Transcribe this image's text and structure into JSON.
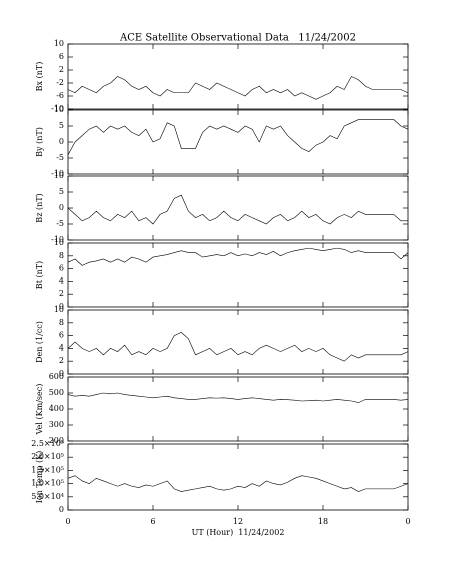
{
  "chart_data": [
    {
      "type": "line",
      "title": "ACE Satellite Observational Data   11/24/2002",
      "ylabel": "Bx (nT)",
      "color": "#000000",
      "ylim": [
        -10,
        10
      ],
      "yticks": [
        -10,
        -6,
        -2,
        2,
        6,
        10
      ],
      "x": [
        0,
        0.5,
        1,
        1.5,
        2,
        2.5,
        3,
        3.5,
        4,
        4.5,
        5,
        5.5,
        6,
        6.5,
        7,
        7.5,
        8,
        8.5,
        9,
        9.5,
        10,
        10.5,
        11,
        11.5,
        12,
        12.5,
        13,
        13.5,
        14,
        14.5,
        15,
        15.5,
        16,
        16.5,
        17,
        17.5,
        18,
        18.5,
        19,
        19.5,
        20,
        20.5,
        21,
        21.5,
        22,
        22.5,
        23,
        23.5,
        24
      ],
      "values": [
        -4,
        -5,
        -3,
        -4,
        -5,
        -3,
        -2,
        0,
        -1,
        -3,
        -4,
        -3,
        -5,
        -6,
        -4,
        -5,
        -5,
        -5,
        -2,
        -3,
        -4,
        -2,
        -3,
        -4,
        -5,
        -6,
        -4,
        -3,
        -5,
        -4,
        -5,
        -4,
        -6,
        -5,
        -6,
        -7,
        -6,
        -5,
        -3,
        -4,
        0,
        -1,
        -3,
        -4,
        -4,
        -4,
        -4,
        -4,
        -5
      ]
    },
    {
      "type": "line",
      "ylabel": "By (nT)",
      "color": "#000000",
      "ylim": [
        -10,
        10
      ],
      "yticks": [
        -10,
        -5,
        0,
        5,
        10
      ],
      "x": [
        0,
        0.5,
        1,
        1.5,
        2,
        2.5,
        3,
        3.5,
        4,
        4.5,
        5,
        5.5,
        6,
        6.5,
        7,
        7.5,
        8,
        8.5,
        9,
        9.5,
        10,
        10.5,
        11,
        11.5,
        12,
        12.5,
        13,
        13.5,
        14,
        14.5,
        15,
        15.5,
        16,
        16.5,
        17,
        17.5,
        18,
        18.5,
        19,
        19.5,
        20,
        20.5,
        21,
        21.5,
        22,
        22.5,
        23,
        23.5,
        24
      ],
      "values": [
        -4,
        0,
        2,
        4,
        5,
        3,
        5,
        4,
        5,
        3,
        2,
        4,
        0,
        1,
        6,
        5,
        -2,
        -2,
        -2,
        3,
        5,
        4,
        5,
        4,
        3,
        5,
        4,
        0,
        5,
        4,
        5,
        2,
        0,
        -2,
        -3,
        -1,
        0,
        2,
        1,
        5,
        6,
        7,
        7,
        7,
        7,
        7,
        7,
        5,
        4
      ]
    },
    {
      "type": "line",
      "ylabel": "Bz (nT)",
      "color": "#000000",
      "ylim": [
        -10,
        10
      ],
      "yticks": [
        -10,
        -5,
        0,
        5,
        10
      ],
      "x": [
        0,
        0.5,
        1,
        1.5,
        2,
        2.5,
        3,
        3.5,
        4,
        4.5,
        5,
        5.5,
        6,
        6.5,
        7,
        7.5,
        8,
        8.5,
        9,
        9.5,
        10,
        10.5,
        11,
        11.5,
        12,
        12.5,
        13,
        13.5,
        14,
        14.5,
        15,
        15.5,
        16,
        16.5,
        17,
        17.5,
        18,
        18.5,
        19,
        19.5,
        20,
        20.5,
        21,
        21.5,
        22,
        22.5,
        23,
        23.5,
        24
      ],
      "values": [
        0,
        -2,
        -4,
        -3,
        -1,
        -3,
        -4,
        -2,
        -3,
        -1,
        -4,
        -3,
        -5,
        -2,
        -1,
        3,
        4,
        -1,
        -3,
        -2,
        -4,
        -3,
        -1,
        -3,
        -4,
        -2,
        -3,
        -4,
        -5,
        -3,
        -2,
        -4,
        -3,
        -1,
        -3,
        -2,
        -4,
        -5,
        -3,
        -2,
        -3,
        -1,
        -2,
        -2,
        -2,
        -2,
        -2,
        -4,
        -4
      ]
    },
    {
      "type": "line",
      "ylabel": "Bt (nT)",
      "color": "#000000",
      "ylim": [
        0,
        10
      ],
      "yticks": [
        0,
        2,
        4,
        6,
        8,
        10
      ],
      "x": [
        0,
        0.5,
        1,
        1.5,
        2,
        2.5,
        3,
        3.5,
        4,
        4.5,
        5,
        5.5,
        6,
        6.5,
        7,
        7.5,
        8,
        8.5,
        9,
        9.5,
        10,
        10.5,
        11,
        11.5,
        12,
        12.5,
        13,
        13.5,
        14,
        14.5,
        15,
        15.5,
        16,
        16.5,
        17,
        17.5,
        18,
        18.5,
        19,
        19.5,
        20,
        20.5,
        21,
        21.5,
        22,
        22.5,
        23,
        23.5,
        24
      ],
      "values": [
        7,
        7.5,
        6.5,
        7,
        7.2,
        7.5,
        7,
        7.5,
        7,
        7.8,
        7.5,
        7,
        7.8,
        8,
        8.2,
        8.5,
        8.8,
        8.5,
        8.5,
        7.8,
        8,
        8.2,
        8,
        8.5,
        8,
        8.3,
        8,
        8.5,
        8.2,
        8.7,
        8,
        8.5,
        8.8,
        9,
        9.2,
        9,
        8.8,
        9,
        9.2,
        9,
        8.5,
        8.8,
        8.5,
        8.5,
        8.5,
        8.5,
        8.5,
        7.5,
        8.5
      ]
    },
    {
      "type": "line",
      "ylabel": "Den (1/cc)",
      "color": "#000000",
      "ylim": [
        0,
        10
      ],
      "yticks": [
        0,
        2,
        4,
        6,
        8,
        10
      ],
      "x": [
        0,
        0.5,
        1,
        1.5,
        2,
        2.5,
        3,
        3.5,
        4,
        4.5,
        5,
        5.5,
        6,
        6.5,
        7,
        7.5,
        8,
        8.5,
        9,
        9.5,
        10,
        10.5,
        11,
        11.5,
        12,
        12.5,
        13,
        13.5,
        14,
        14.5,
        15,
        15.5,
        16,
        16.5,
        17,
        17.5,
        18,
        18.5,
        19,
        19.5,
        20,
        20.5,
        21,
        21.5,
        22,
        22.5,
        23,
        23.5,
        24
      ],
      "values": [
        4,
        5,
        4,
        3.5,
        4,
        3,
        4,
        3.5,
        4.5,
        3,
        3.5,
        3,
        4,
        3.5,
        4,
        6,
        6.5,
        5.5,
        3,
        3.5,
        4,
        3,
        3.5,
        4,
        3,
        3.5,
        3,
        4,
        4.5,
        4,
        3.5,
        4,
        4.5,
        3.5,
        4,
        3.5,
        4,
        3,
        2.5,
        2,
        3,
        2.5,
        3,
        3,
        3,
        3,
        3,
        3,
        3.5
      ]
    },
    {
      "type": "line",
      "ylabel": "Vel (Km/sec)",
      "color": "#000000",
      "ylim": [
        200,
        600
      ],
      "yticks": [
        200,
        300,
        400,
        500,
        600
      ],
      "x": [
        0,
        0.5,
        1,
        1.5,
        2,
        2.5,
        3,
        3.5,
        4,
        4.5,
        5,
        5.5,
        6,
        6.5,
        7,
        7.5,
        8,
        8.5,
        9,
        9.5,
        10,
        10.5,
        11,
        11.5,
        12,
        12.5,
        13,
        13.5,
        14,
        14.5,
        15,
        15.5,
        16,
        16.5,
        17,
        17.5,
        18,
        18.5,
        19,
        19.5,
        20,
        20.5,
        21,
        21.5,
        22,
        22.5,
        23,
        23.5,
        24
      ],
      "values": [
        490,
        480,
        485,
        480,
        490,
        500,
        495,
        500,
        490,
        485,
        480,
        475,
        470,
        475,
        480,
        470,
        465,
        460,
        460,
        465,
        470,
        468,
        470,
        465,
        460,
        465,
        470,
        465,
        460,
        455,
        460,
        458,
        455,
        450,
        452,
        455,
        450,
        455,
        460,
        455,
        450,
        440,
        460,
        460,
        460,
        460,
        460,
        455,
        460
      ]
    },
    {
      "type": "line",
      "ylabel": "Ion Temp (K)",
      "xlabel": "UT (Hour)  11/24/2002",
      "color": "#000000",
      "ylim": [
        0,
        250000
      ],
      "yticks": [
        0,
        {
          "value": 50000,
          "label": "5.0×10⁴"
        },
        {
          "value": 100000,
          "label": "1.0×10⁵"
        },
        {
          "value": 150000,
          "label": "1.5×10⁵"
        },
        {
          "value": 200000,
          "label": "2.0×10⁵"
        },
        {
          "value": 250000,
          "label": "2.5×10⁵"
        }
      ],
      "xlim": [
        0,
        24
      ],
      "xticks": [
        0,
        6,
        12,
        18,
        {
          "value": 24,
          "label": "0"
        }
      ],
      "x": [
        0,
        0.5,
        1,
        1.5,
        2,
        2.5,
        3,
        3.5,
        4,
        4.5,
        5,
        5.5,
        6,
        6.5,
        7,
        7.5,
        8,
        8.5,
        9,
        9.5,
        10,
        10.5,
        11,
        11.5,
        12,
        12.5,
        13,
        13.5,
        14,
        14.5,
        15,
        15.5,
        16,
        16.5,
        17,
        17.5,
        18,
        18.5,
        19,
        19.5,
        20,
        20.5,
        21,
        21.5,
        22,
        22.5,
        23,
        23.5,
        24
      ],
      "values": [
        120000,
        130000,
        110000,
        100000,
        120000,
        110000,
        100000,
        90000,
        100000,
        90000,
        85000,
        95000,
        90000,
        100000,
        110000,
        80000,
        70000,
        75000,
        80000,
        85000,
        90000,
        80000,
        75000,
        80000,
        90000,
        85000,
        100000,
        90000,
        110000,
        100000,
        95000,
        105000,
        120000,
        130000,
        125000,
        120000,
        110000,
        100000,
        90000,
        80000,
        85000,
        70000,
        80000,
        80000,
        80000,
        80000,
        80000,
        90000,
        100000
      ]
    }
  ]
}
